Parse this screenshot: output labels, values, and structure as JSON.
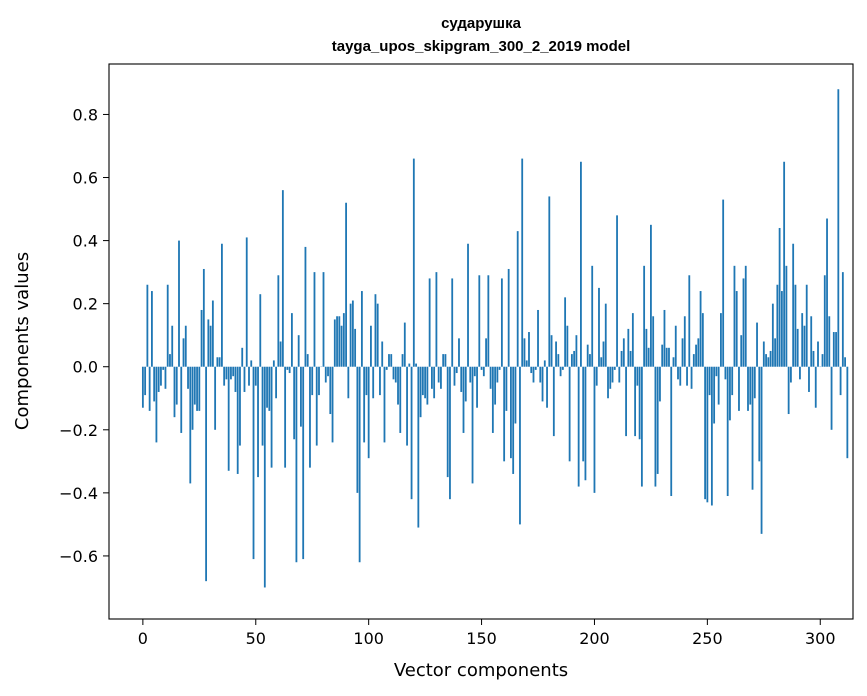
{
  "chart_data": {
    "type": "bar",
    "title": "сударушка",
    "subtitle": "tayga_upos_skipgram_300_2_2019 model",
    "xlabel": "Vector components",
    "ylabel": "Components values",
    "xlim": [
      -15,
      314.5
    ],
    "ylim": [
      -0.8,
      0.96
    ],
    "xticks": [
      0,
      50,
      100,
      150,
      200,
      250,
      300
    ],
    "xtick_labels": [
      "0",
      "50",
      "100",
      "150",
      "200",
      "250",
      "300"
    ],
    "yticks": [
      -0.6,
      -0.4,
      -0.2,
      0.0,
      0.2,
      0.4,
      0.6,
      0.8
    ],
    "ytick_labels": [
      "−0.6",
      "−0.4",
      "−0.2",
      "0.0",
      "0.2",
      "0.4",
      "0.6",
      "0.8"
    ],
    "bar_color": "#1f77b4",
    "values": [
      -0.13,
      -0.09,
      0.26,
      -0.14,
      0.24,
      -0.11,
      -0.24,
      -0.08,
      -0.06,
      -0.01,
      -0.07,
      0.26,
      0.04,
      0.13,
      -0.16,
      -0.12,
      0.4,
      -0.21,
      0.09,
      0.13,
      -0.07,
      -0.37,
      -0.2,
      -0.12,
      -0.14,
      -0.14,
      0.18,
      0.31,
      -0.68,
      0.15,
      0.13,
      0.21,
      -0.2,
      0.03,
      0.03,
      0.39,
      -0.06,
      -0.04,
      -0.33,
      -0.04,
      -0.03,
      -0.08,
      -0.34,
      -0.25,
      0.06,
      -0.08,
      0.41,
      -0.06,
      0.02,
      -0.61,
      -0.06,
      -0.35,
      0.23,
      -0.25,
      -0.7,
      -0.13,
      -0.14,
      -0.32,
      0.02,
      -0.1,
      0.29,
      0.08,
      0.56,
      -0.32,
      -0.01,
      -0.02,
      0.17,
      -0.23,
      -0.62,
      0.1,
      -0.19,
      -0.61,
      0.38,
      0.04,
      -0.32,
      -0.09,
      0.3,
      -0.25,
      -0.09,
      0.0,
      0.3,
      -0.05,
      -0.03,
      -0.15,
      -0.24,
      0.15,
      0.16,
      0.16,
      0.13,
      0.17,
      0.52,
      -0.1,
      0.2,
      0.21,
      0.12,
      -0.4,
      -0.62,
      0.24,
      -0.24,
      -0.09,
      -0.29,
      0.13,
      -0.1,
      0.23,
      0.2,
      -0.09,
      0.08,
      -0.24,
      -0.01,
      0.04,
      0.04,
      -0.04,
      -0.05,
      -0.12,
      -0.21,
      0.04,
      0.14,
      -0.25,
      0.01,
      -0.42,
      0.66,
      0.01,
      -0.51,
      -0.16,
      -0.09,
      -0.1,
      -0.12,
      0.28,
      -0.07,
      -0.1,
      0.3,
      -0.05,
      -0.07,
      0.04,
      0.04,
      -0.35,
      -0.42,
      0.28,
      -0.06,
      -0.02,
      0.09,
      -0.08,
      -0.21,
      -0.11,
      0.39,
      -0.05,
      -0.37,
      -0.03,
      -0.13,
      0.29,
      -0.01,
      -0.03,
      0.09,
      0.29,
      -0.07,
      -0.21,
      -0.12,
      -0.05,
      -0.01,
      0.28,
      -0.3,
      -0.14,
      0.31,
      -0.29,
      -0.34,
      -0.18,
      0.43,
      -0.5,
      0.66,
      0.09,
      0.02,
      0.11,
      -0.02,
      -0.05,
      -0.01,
      0.18,
      -0.05,
      -0.11,
      0.02,
      -0.13,
      0.54,
      0.1,
      -0.22,
      0.08,
      0.04,
      -0.03,
      -0.01,
      0.22,
      0.13,
      -0.3,
      0.04,
      0.05,
      0.1,
      -0.38,
      0.65,
      -0.3,
      -0.36,
      0.07,
      0.04,
      0.32,
      -0.4,
      -0.06,
      0.25,
      0.03,
      0.08,
      0.2,
      -0.1,
      -0.07,
      -0.05,
      -0.01,
      0.48,
      -0.05,
      0.05,
      0.09,
      -0.22,
      0.12,
      0.05,
      0.17,
      -0.22,
      -0.06,
      -0.23,
      -0.38,
      0.32,
      0.12,
      0.06,
      0.45,
      0.16,
      -0.38,
      -0.34,
      -0.11,
      0.07,
      0.18,
      0.06,
      0.06,
      -0.41,
      0.03,
      0.13,
      -0.04,
      -0.06,
      0.09,
      0.16,
      -0.06,
      0.29,
      -0.07,
      0.04,
      0.07,
      0.09,
      0.24,
      0.17,
      -0.42,
      -0.43,
      -0.09,
      -0.44,
      -0.18,
      -0.03,
      -0.12,
      0.17,
      0.53,
      -0.04,
      -0.41,
      -0.17,
      -0.09,
      0.32,
      0.24,
      -0.14,
      0.1,
      0.28,
      0.32,
      -0.14,
      -0.12,
      -0.39,
      -0.1,
      0.14,
      -0.3,
      -0.53,
      0.08,
      0.04,
      0.03,
      0.05,
      0.2,
      0.09,
      0.26,
      0.44,
      0.24,
      0.65,
      0.32,
      -0.15,
      -0.05,
      0.39,
      0.26,
      0.12,
      -0.04,
      0.17,
      0.13,
      0.26,
      -0.08,
      0.16,
      0.05,
      -0.13,
      0.08,
      0.0,
      0.04,
      0.29,
      0.47,
      0.16,
      -0.2,
      0.11,
      0.11,
      0.88,
      -0.09,
      0.3,
      0.03,
      -0.29
    ]
  }
}
